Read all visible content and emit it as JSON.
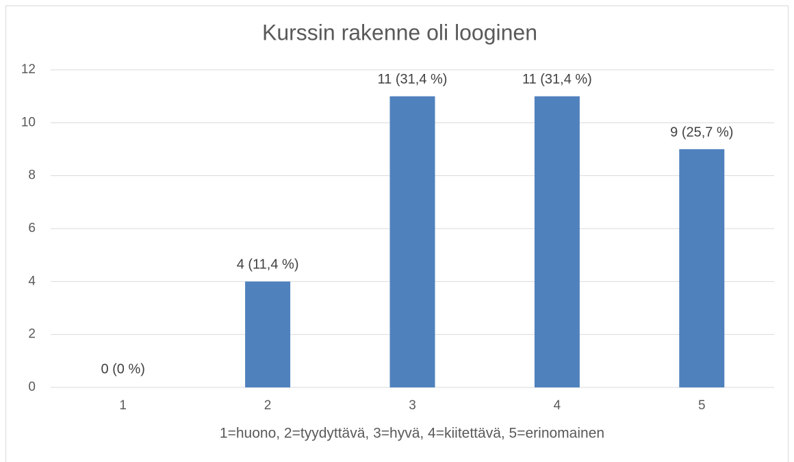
{
  "chart_data": {
    "type": "bar",
    "title": "Kurssin rakenne oli looginen",
    "x_label": "1=huono, 2=tyydyttävä, 3=hyvä, 4=kiitettävä, 5=erinomainen",
    "categories": [
      "1",
      "2",
      "3",
      "4",
      "5"
    ],
    "values": [
      0,
      4,
      11,
      11,
      9
    ],
    "value_labels": [
      "0 (0 %)",
      "4 (11,4 %)",
      "11 (31,4 %)",
      "11 (31,4 %)",
      "9 (25,7 %)"
    ],
    "color": "#4f81bd",
    "ylim": [
      0,
      12
    ],
    "yticks": [
      0,
      2,
      4,
      6,
      8,
      10,
      12
    ],
    "grid": true
  }
}
